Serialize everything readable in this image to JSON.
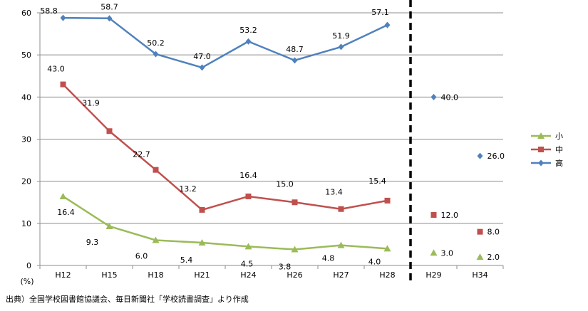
{
  "chart_data": {
    "type": "line",
    "title": "",
    "xlabel": "",
    "ylabel": "",
    "y_unit_label": "(%)",
    "ylim": [
      0,
      60
    ],
    "yticks": [
      0,
      10,
      20,
      30,
      40,
      50,
      60
    ],
    "categories": [
      "H12",
      "H15",
      "H18",
      "H21",
      "H24",
      "H26",
      "H27",
      "H28",
      "H29",
      "H34"
    ],
    "grid": true,
    "legend_position": "right",
    "divider_after": "H28",
    "series": [
      {
        "name": "小",
        "color": "#9bbb59",
        "marker": "triangle",
        "values": [
          16.4,
          9.3,
          6.0,
          5.4,
          4.5,
          3.8,
          4.8,
          4.0,
          null,
          null
        ],
        "labels": [
          "16.4",
          "9.3",
          "6.0",
          "5.4",
          "4.5",
          "3.8",
          "4.8",
          "4.0",
          null,
          null
        ]
      },
      {
        "name": "中",
        "color": "#c0504d",
        "marker": "square",
        "values": [
          43.0,
          31.9,
          22.7,
          13.2,
          16.4,
          15.0,
          13.4,
          15.4,
          null,
          null
        ],
        "labels": [
          "43.0",
          "31.9",
          "22.7",
          "13.2",
          "16.4",
          "15.0",
          "13.4",
          "15.4",
          null,
          null
        ]
      },
      {
        "name": "高",
        "color": "#4f81bd",
        "marker": "diamond",
        "values": [
          58.8,
          58.7,
          50.2,
          47.0,
          53.2,
          48.7,
          51.9,
          57.1,
          null,
          null
        ],
        "labels": [
          "58.8",
          "58.7",
          "50.2",
          "47.0",
          "53.2",
          "48.7",
          "51.9",
          "57.1",
          null,
          null
        ]
      }
    ],
    "targets": [
      {
        "series": "高",
        "category": "H29",
        "value": 40.0,
        "label": "40.0"
      },
      {
        "series": "高",
        "category": "H34",
        "value": 26.0,
        "label": "26.0"
      },
      {
        "series": "中",
        "category": "H29",
        "value": 12.0,
        "label": "12.0"
      },
      {
        "series": "中",
        "category": "H34",
        "value": 8.0,
        "label": "8.0"
      },
      {
        "series": "小",
        "category": "H29",
        "value": 3.0,
        "label": "3.0"
      },
      {
        "series": "小",
        "category": "H34",
        "value": 2.0,
        "label": "2.0"
      }
    ]
  },
  "source_note": "出典）全国学校図書館協議会、毎日新聞社「学校読書調査」より作成"
}
